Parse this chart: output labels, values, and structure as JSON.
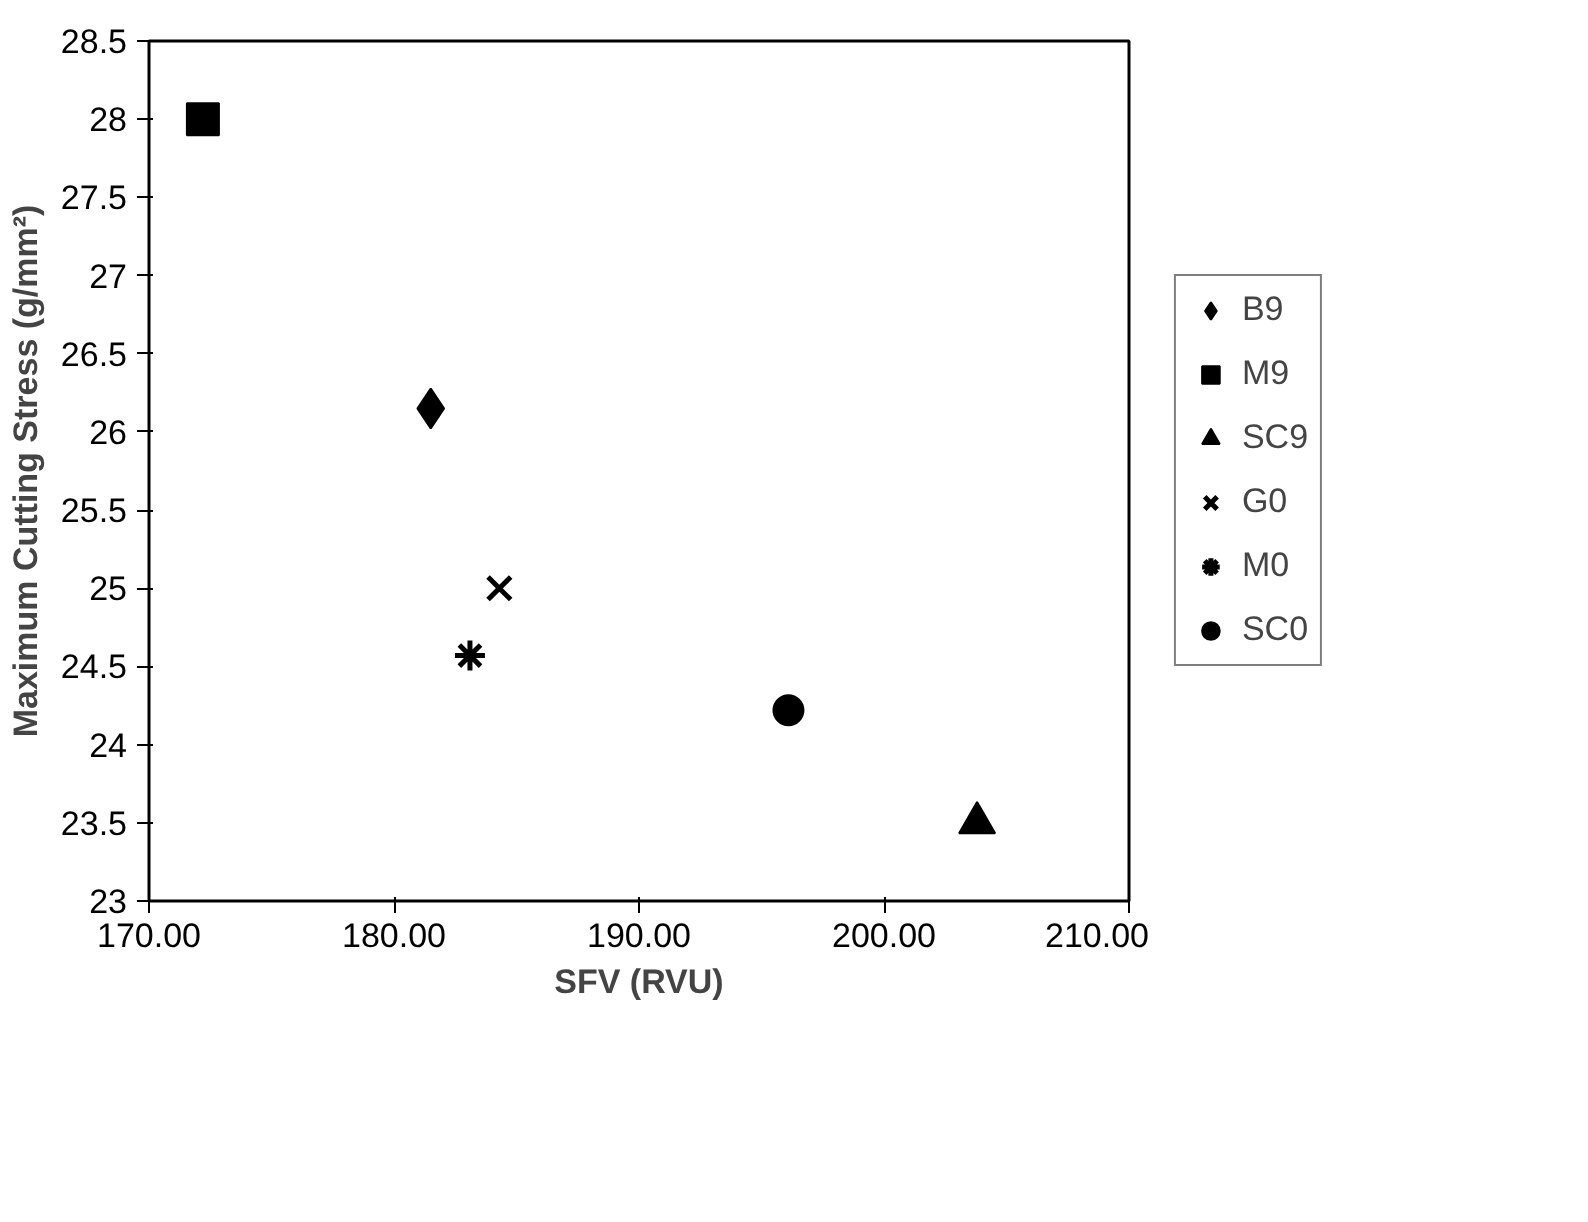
{
  "chart_data": {
    "type": "scatter",
    "xlabel": "SFV (RVU)",
    "ylabel": "Maximum Cutting Stress (g/mm²)",
    "xlim": [
      170,
      210
    ],
    "ylim": [
      23,
      28.5
    ],
    "xticks": [
      {
        "value": 170,
        "label": "170.00"
      },
      {
        "value": 180,
        "label": "180.00"
      },
      {
        "value": 190,
        "label": "190.00"
      },
      {
        "value": 200,
        "label": "200.00"
      },
      {
        "value": 210,
        "label": "210.00"
      }
    ],
    "yticks": [
      23,
      23.5,
      24,
      24.5,
      25,
      25.5,
      26,
      26.5,
      27,
      27.5,
      28,
      28.5
    ],
    "grid": false,
    "legend": "right",
    "series": [
      {
        "name": "B9",
        "color": "#000000",
        "marker": "diamond",
        "x": [
          181.5
        ],
        "values": [
          26.15
        ]
      },
      {
        "name": "M9",
        "color": "#000000",
        "marker": "square",
        "x": [
          172.2
        ],
        "values": [
          28.0
        ]
      },
      {
        "name": "SC9",
        "color": "#000000",
        "marker": "triangle",
        "x": [
          203.8
        ],
        "values": [
          23.5
        ]
      },
      {
        "name": "G0",
        "color": "#000000",
        "marker": "x",
        "x": [
          184.3
        ],
        "values": [
          25.0
        ]
      },
      {
        "name": "M0",
        "color": "#000000",
        "marker": "cross",
        "x": [
          183.1
        ],
        "values": [
          24.57
        ]
      },
      {
        "name": "SC0",
        "color": "#000000",
        "marker": "circle",
        "x": [
          196.1
        ],
        "values": [
          24.22
        ]
      }
    ]
  }
}
